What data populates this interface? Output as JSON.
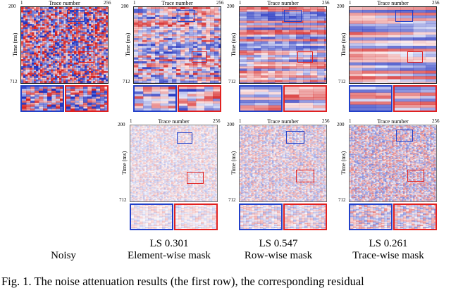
{
  "figure": {
    "x_axis_label": "Trace number",
    "y_axis_label": "Time (ms)",
    "x_tick_start": "1",
    "x_tick_end": "256",
    "y_tick_start": "200",
    "y_tick_end": "712",
    "colors": {
      "zoom_left": "#2340c8",
      "zoom_right": "#e02020",
      "positive": "#d42020",
      "negative": "#2233c0"
    }
  },
  "columns": [
    {
      "label_line1": "",
      "label_line2": "Noisy"
    },
    {
      "label_line1": "LS 0.301",
      "label_line2": "Element-wise mask"
    },
    {
      "label_line1": "LS 0.547",
      "label_line2": "Row-wise mask"
    },
    {
      "label_line1": "LS 0.261",
      "label_line2": "Trace-wise mask"
    }
  ],
  "caption": "Fig. 1.  The noise attenuation results (the first row), the corresponding residual"
}
